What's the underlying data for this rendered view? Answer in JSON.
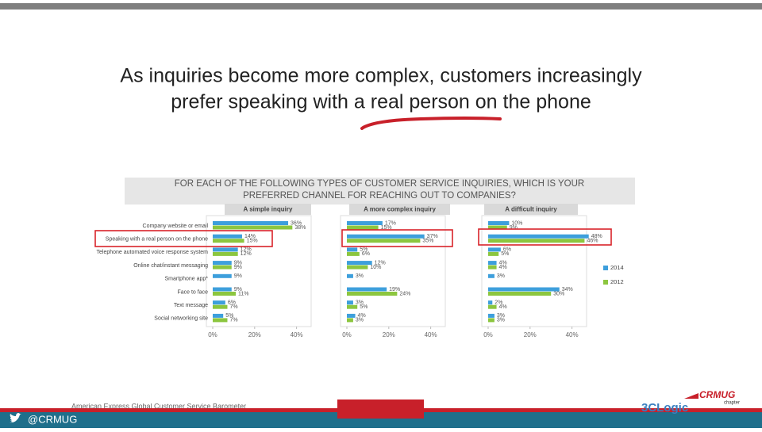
{
  "slide": {
    "title_lines": [
      "As inquiries become more complex, customers increasingly",
      "prefer speaking with a real person on the phone"
    ],
    "chart_header_lines": [
      "FOR EACH OF THE FOLLOWING TYPES OF CUSTOMER SERVICE INQUIRIES, WHICH IS YOUR",
      "PREFERRED CHANNEL FOR REACHING OUT TO COMPANIES?"
    ],
    "source": "American Express Global Customer Service Barometer",
    "handle": "@CRMUG",
    "logo_crmug": "CRMUG",
    "logo_chapter": "chapter",
    "logo_3clogic": "3CLogic"
  },
  "chart_data": [
    {
      "type": "hbar",
      "title": "A simple inquiry",
      "categories": [
        "Company website or email",
        "Speaking with a real person on the phone",
        "Telephone automated voice response system",
        "Online chat/instant messaging",
        "Smartphone app*",
        "Face to face",
        "Text message",
        "Social networking site"
      ],
      "series": [
        {
          "color": "#3d9fdc",
          "values": [
            36,
            14,
            12,
            9,
            9,
            9,
            6,
            5
          ],
          "value_labels": [
            "36%",
            "14%",
            "12%",
            "9%",
            "9%",
            "9%",
            "6%",
            "5%"
          ]
        },
        {
          "color": "#8cc63f",
          "values": [
            38,
            15,
            12,
            9,
            null,
            11,
            7,
            7
          ],
          "value_labels": [
            "38%",
            "15%",
            "12%",
            "9%",
            null,
            "11%",
            "7%",
            "7%"
          ]
        }
      ],
      "xlim": [
        0,
        50
      ],
      "xticks": [
        {
          "value": 0,
          "label": "0%"
        },
        {
          "value": 20,
          "label": "20%"
        },
        {
          "value": 40,
          "label": "40%"
        }
      ]
    },
    {
      "type": "hbar",
      "title": "A more complex inquiry",
      "categories": [
        null,
        null,
        null,
        null,
        null,
        null,
        null,
        null
      ],
      "series": [
        {
          "color": "#3d9fdc",
          "values": [
            17,
            37,
            5,
            12,
            3,
            19,
            3,
            4
          ],
          "value_labels": [
            "17%",
            "37%",
            "5%",
            "12%",
            "3%",
            "19%",
            "3%",
            "4%"
          ]
        },
        {
          "color": "#8cc63f",
          "values": [
            15,
            35,
            6,
            10,
            null,
            24,
            5,
            3
          ],
          "value_labels": [
            "15%",
            "35%",
            "6%",
            "10%",
            null,
            "24%",
            "5%",
            "3%"
          ]
        }
      ],
      "xlim": [
        0,
        50
      ],
      "xticks": [
        {
          "value": 0,
          "label": "0%"
        },
        {
          "value": 20,
          "label": "20%"
        },
        {
          "value": 40,
          "label": "40%"
        }
      ]
    },
    {
      "type": "hbar",
      "title": "A difficult inquiry",
      "categories": [
        null,
        null,
        null,
        null,
        null,
        null,
        null,
        null
      ],
      "series": [
        {
          "name": "2014",
          "color": "#3d9fdc",
          "values": [
            10,
            48,
            6,
            4,
            3,
            34,
            2,
            3
          ],
          "value_labels": [
            "10%",
            "48%",
            "6%",
            "4%",
            "3%",
            "34%",
            "2%",
            "3%"
          ]
        },
        {
          "name": "2012",
          "color": "#8cc63f",
          "values": [
            9,
            46,
            5,
            4,
            null,
            30,
            4,
            3
          ],
          "value_labels": [
            "9%",
            "46%",
            "5%",
            "4%",
            null,
            "30%",
            "4%",
            "3%"
          ]
        }
      ],
      "xlim": [
        0,
        50
      ],
      "xticks": [
        {
          "value": 0,
          "label": "0%"
        },
        {
          "value": 20,
          "label": "20%"
        },
        {
          "value": 40,
          "label": "40%"
        }
      ],
      "legend": "right"
    }
  ]
}
